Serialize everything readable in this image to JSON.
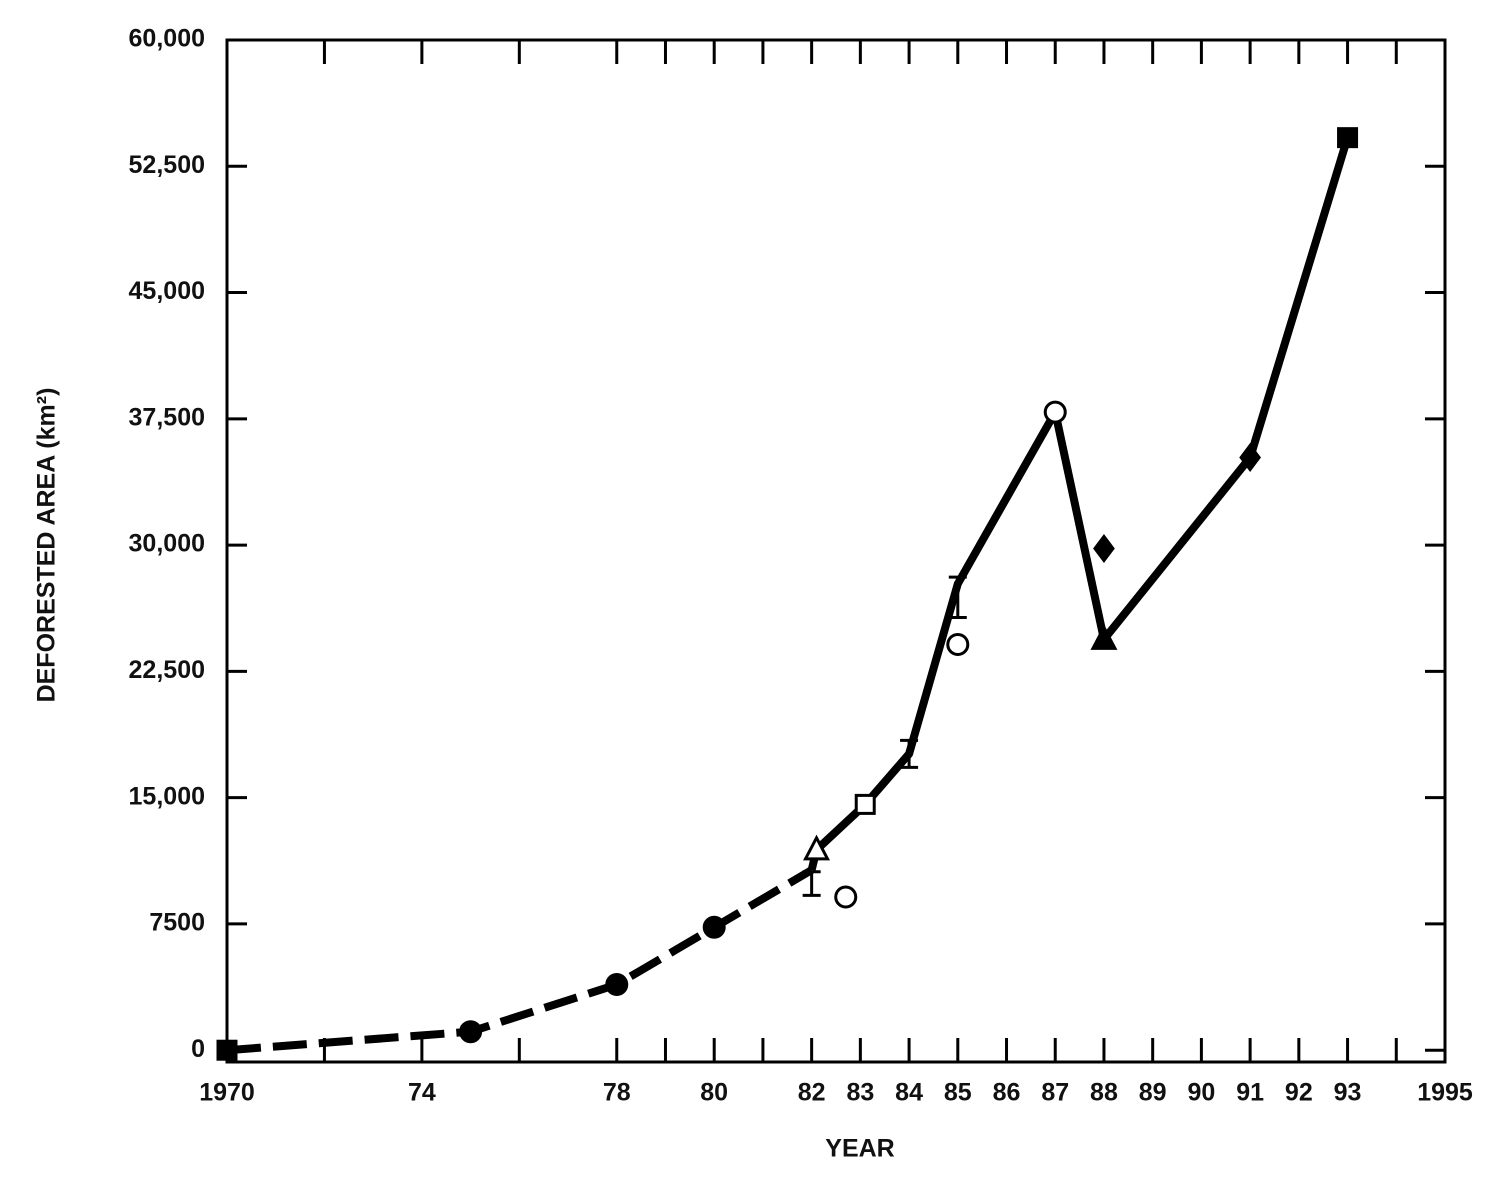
{
  "chart_data": {
    "type": "line",
    "xlabel": "YEAR",
    "ylabel": "DEFORESTED AREA (km²)",
    "xlim": [
      1970,
      1995
    ],
    "ylim": [
      -700,
      60000
    ],
    "xticks": [
      {
        "value": 1970,
        "label": "1970"
      },
      {
        "value": 1974,
        "label": "74"
      },
      {
        "value": 1978,
        "label": "78"
      },
      {
        "value": 1980,
        "label": "80"
      },
      {
        "value": 1982,
        "label": "82"
      },
      {
        "value": 1983,
        "label": "83"
      },
      {
        "value": 1984,
        "label": "84"
      },
      {
        "value": 1985,
        "label": "85"
      },
      {
        "value": 1986,
        "label": "86"
      },
      {
        "value": 1987,
        "label": "87"
      },
      {
        "value": 1988,
        "label": "88"
      },
      {
        "value": 1989,
        "label": "89"
      },
      {
        "value": 1990,
        "label": "90"
      },
      {
        "value": 1991,
        "label": "91"
      },
      {
        "value": 1992,
        "label": "92"
      },
      {
        "value": 1993,
        "label": "93"
      },
      1995
    ],
    "xminorticks": [
      1972,
      1976,
      1979,
      1981,
      1994
    ],
    "yticks": [
      0,
      7500,
      {
        "value": 15000,
        "label": "15,000"
      },
      {
        "value": 22500,
        "label": "22,500"
      },
      {
        "value": 30000,
        "label": "30,000"
      },
      {
        "value": 37500,
        "label": "37,500"
      },
      {
        "value": 45000,
        "label": "45,000"
      },
      {
        "value": 52500,
        "label": "52,500"
      },
      {
        "value": 60000,
        "label": "60,000"
      }
    ],
    "series": [
      {
        "line": "dashed",
        "color": "#000000",
        "x": [
          1970,
          1975,
          1978,
          1980,
          1982
        ],
        "values": [
          0,
          1100,
          3900,
          7300,
          10700
        ]
      },
      {
        "line": "solid",
        "color": "#000000",
        "x": [
          1982,
          1982.1,
          1983.1,
          1984,
          1985,
          1987,
          1988,
          1991,
          1993
        ],
        "values": [
          10700,
          11900,
          14600,
          17600,
          27700,
          37900,
          24400,
          35200,
          54200
        ]
      },
      {
        "marker": "filled-square",
        "color": "#000000",
        "x": [
          1970,
          1993
        ],
        "values": [
          0,
          54200
        ]
      },
      {
        "marker": "filled-circle",
        "color": "#000000",
        "x": [
          1975,
          1978,
          1980
        ],
        "values": [
          1100,
          3900,
          7300
        ]
      },
      {
        "marker": "open-triangle",
        "color": "#000000",
        "x": [
          1982.1
        ],
        "values": [
          11900
        ]
      },
      {
        "marker": "open-square",
        "color": "#000000",
        "x": [
          1983.1
        ],
        "values": [
          14600
        ]
      },
      {
        "marker": "open-circle",
        "color": "#000000",
        "x": [
          1982.7,
          1985,
          1987
        ],
        "values": [
          9100,
          24100,
          37900
        ]
      },
      {
        "marker": "filled-triangle",
        "color": "#000000",
        "x": [
          1988
        ],
        "values": [
          24400
        ]
      },
      {
        "marker": "filled-diamond",
        "color": "#000000",
        "x": [
          1988,
          1991
        ],
        "values": [
          29800,
          35200
        ]
      },
      {
        "marker": "errorbar",
        "color": "#000000",
        "x": [
          1982,
          1984,
          1985
        ],
        "values": [
          9900,
          17600,
          26900
        ],
        "errors": [
          700,
          800,
          1200
        ]
      }
    ]
  }
}
